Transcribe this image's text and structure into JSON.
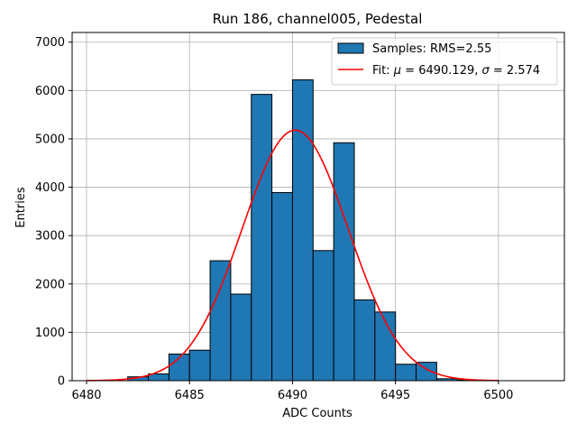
{
  "chart_data": {
    "type": "bar",
    "title": "Run 186, channel005, Pedestal",
    "xlabel": "ADC Counts",
    "ylabel": "Entries",
    "xlim": [
      6479.3,
      6503.2
    ],
    "ylim": [
      0,
      7200
    ],
    "xticks": [
      6480,
      6485,
      6490,
      6495,
      6500
    ],
    "yticks": [
      0,
      1000,
      2000,
      3000,
      4000,
      5000,
      6000,
      7000
    ],
    "grid": true,
    "legend_position": "top-right",
    "bars": [
      {
        "x0": 6482,
        "x1": 6483,
        "value": 80
      },
      {
        "x0": 6483,
        "x1": 6484,
        "value": 140
      },
      {
        "x0": 6484,
        "x1": 6485,
        "value": 550
      },
      {
        "x0": 6485,
        "x1": 6486,
        "value": 630
      },
      {
        "x0": 6486,
        "x1": 6487,
        "value": 2480
      },
      {
        "x0": 6487,
        "x1": 6488,
        "value": 1790
      },
      {
        "x0": 6488,
        "x1": 6489,
        "value": 5920
      },
      {
        "x0": 6489,
        "x1": 6490,
        "value": 3890
      },
      {
        "x0": 6490,
        "x1": 6491,
        "value": 6220
      },
      {
        "x0": 6491,
        "x1": 6492,
        "value": 2690
      },
      {
        "x0": 6492,
        "x1": 6493,
        "value": 4920
      },
      {
        "x0": 6493,
        "x1": 6494,
        "value": 1670
      },
      {
        "x0": 6494,
        "x1": 6495,
        "value": 1420
      },
      {
        "x0": 6495,
        "x1": 6496,
        "value": 340
      },
      {
        "x0": 6496,
        "x1": 6497,
        "value": 380
      },
      {
        "x0": 6497,
        "x1": 6498,
        "value": 40
      },
      {
        "x0": 6498,
        "x1": 6499,
        "value": 15
      }
    ],
    "series": [
      {
        "name": "Samples: RMS=2.55",
        "type": "histogram",
        "color": "#1f77b4",
        "edge_color": "#000000"
      },
      {
        "name_prefix": "Fit: ",
        "mu_symbol": "μ",
        "mu_text": " = 6490.129, ",
        "sigma_symbol": "σ",
        "sigma_text": " = 2.574",
        "type": "line",
        "color": "#ff0000",
        "fit": {
          "amplitude": 5180,
          "mu": 6490.129,
          "sigma": 2.574,
          "x_range": [
            6480,
            6500
          ]
        }
      }
    ]
  }
}
